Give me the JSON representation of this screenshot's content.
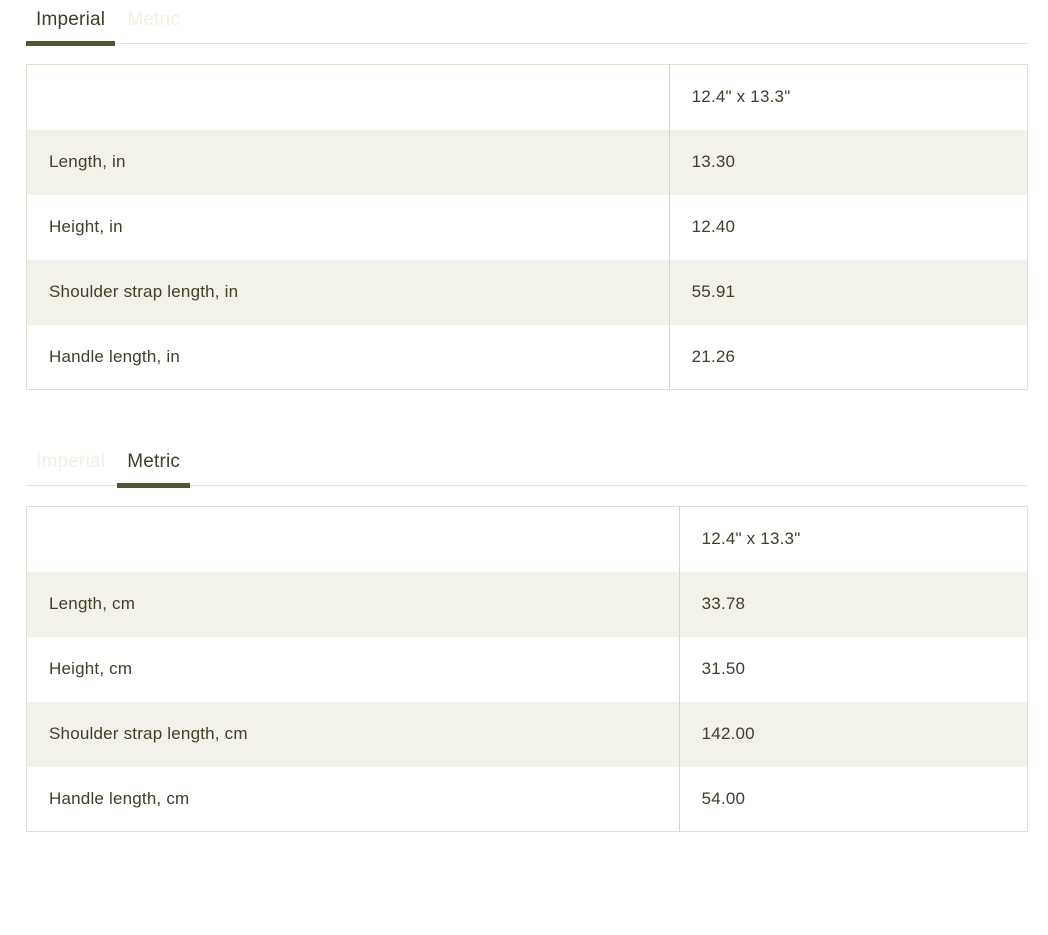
{
  "theme": {
    "text": "#3f3e29",
    "accent": "#565336",
    "ghost": "#f3f1e3",
    "stripe": "#f2f2ea",
    "border": "#e3e1d4",
    "divider": "#d8d6c8",
    "rule": "#e7e5d9"
  },
  "sections": [
    {
      "name": "imperial",
      "tabs": [
        {
          "label": "Imperial",
          "active": true
        },
        {
          "label": "Metric",
          "active": false
        }
      ],
      "table": {
        "header_value": "12.4\" x 13.3\"",
        "rows": [
          {
            "label": "Length, in",
            "value": "13.30"
          },
          {
            "label": "Height, in",
            "value": "12.40"
          },
          {
            "label": "Shoulder strap length, in",
            "value": "55.91"
          },
          {
            "label": "Handle length, in",
            "value": "21.26"
          }
        ]
      }
    },
    {
      "name": "metric",
      "tabs": [
        {
          "label": "Imperial",
          "active": false
        },
        {
          "label": "Metric",
          "active": true
        }
      ],
      "table": {
        "header_value": "12.4\" x 13.3\"",
        "rows": [
          {
            "label": "Length, cm",
            "value": "33.78"
          },
          {
            "label": "Height, cm",
            "value": "31.50"
          },
          {
            "label": "Shoulder strap length, cm",
            "value": "142.00"
          },
          {
            "label": "Handle length, cm",
            "value": "54.00"
          }
        ]
      }
    }
  ]
}
